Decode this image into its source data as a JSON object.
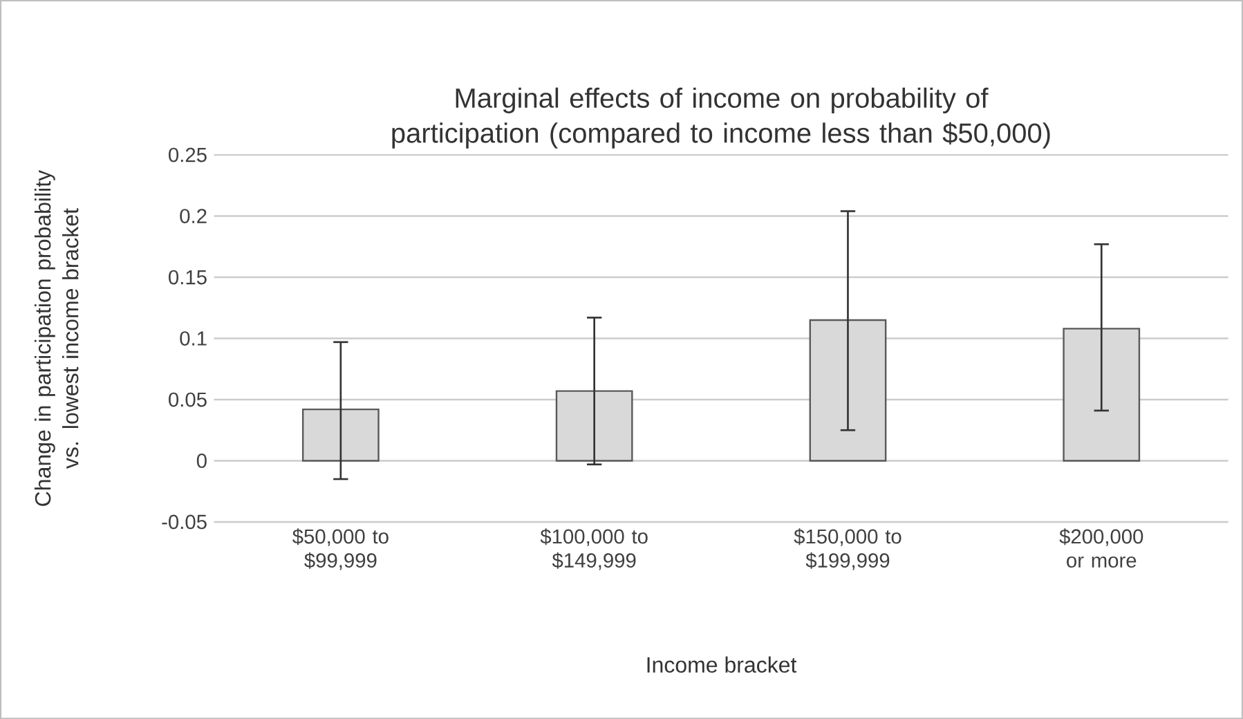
{
  "chart_data": {
    "type": "bar",
    "title": "Marginal effects of income on probability of participation (compared to income less than $50,000)",
    "xlabel": "Income bracket",
    "ylabel": "Change in participation probability vs. lowest income bracket",
    "categories": [
      "$50,000 to $99,999",
      "$100,000 to $149,999",
      "$150,000 to $199,999",
      "$200,000 or more"
    ],
    "values": [
      0.042,
      0.057,
      0.115,
      0.108
    ],
    "errors": [
      [
        -0.015,
        0.097
      ],
      [
        -0.003,
        0.117
      ],
      [
        0.025,
        0.204
      ],
      [
        0.041,
        0.177
      ]
    ],
    "color": "#d9d9d9",
    "ylim": [
      -0.05,
      0.25
    ],
    "yticks": [
      -0.05,
      0,
      0.05,
      0.1,
      0.15,
      0.2,
      0.25
    ],
    "grid": "y"
  }
}
